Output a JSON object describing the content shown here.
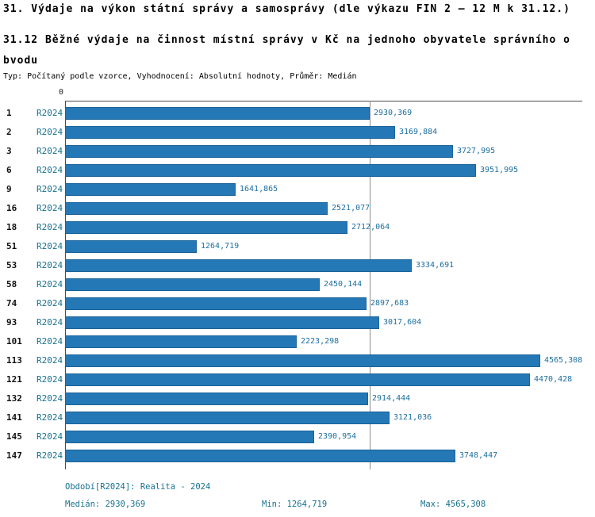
{
  "title": "31. Výdaje na výkon státní správy a samosprávy (dle výkazu FIN 2 – 12 M k 31.12.)",
  "subtitle": "31.12 Běžné výdaje na činnost místní správy v Kč na jednoho obyvatele správního obvodu",
  "meta": "Typ: Počítaný podle vzorce, Vyhodnocení: Absolutní hodnoty, Průměr: Medián",
  "axis_zero": "0",
  "colors": {
    "bar": "#2478b5",
    "bar_border": "#1b6399",
    "accent_text": "#17718f",
    "value_text": "#1d6fa0",
    "axis": "#4d4d4d",
    "gridline": "#8c8c8c"
  },
  "footer": {
    "period": "Období[R2024]: Realita - 2024",
    "median": "Medián: 2930,369",
    "min": "Min: 1264,719",
    "max": "Max: 4565,308"
  },
  "chart_data": {
    "type": "bar",
    "orientation": "horizontal",
    "series_label": "R2024",
    "categories": [
      "1",
      "2",
      "3",
      "6",
      "9",
      "16",
      "18",
      "51",
      "53",
      "58",
      "74",
      "93",
      "101",
      "113",
      "121",
      "132",
      "141",
      "145",
      "147"
    ],
    "values": [
      2930.369,
      3169.884,
      3727.995,
      3951.995,
      1641.865,
      2521.077,
      2712.064,
      1264.719,
      3334.691,
      2450.144,
      2897.683,
      3017.604,
      2223.298,
      4565.308,
      4470.428,
      2914.444,
      3121.036,
      2390.954,
      3748.447
    ],
    "value_labels": [
      "2930,369",
      "3169,884",
      "3727,995",
      "3951,995",
      "1641,865",
      "2521,077",
      "2712,064",
      "1264,719",
      "3334,691",
      "2450,144",
      "2897,683",
      "3017,604",
      "2223,298",
      "4565,308",
      "4470,428",
      "2914,444",
      "3121,036",
      "2390,954",
      "3748,447"
    ],
    "xlim": [
      0,
      4970
    ],
    "median_value": 2930.369,
    "min_value": 1264.719,
    "max_value": 4565.308,
    "title": "31.12 Běžné výdaje na činnost místní správy v Kč na jednoho obyvatele správního obvodu",
    "xlabel": "",
    "ylabel": "",
    "legend_position": "none",
    "grid": "median-only"
  }
}
